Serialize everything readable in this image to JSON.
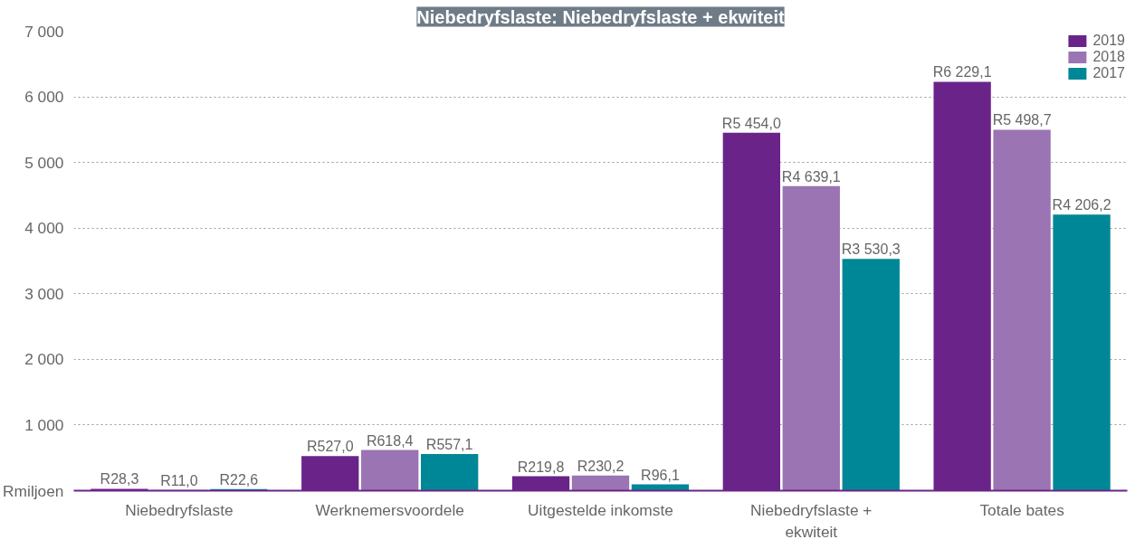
{
  "chart_data": {
    "type": "bar",
    "title": "Niebedryfslaste: Niebedryfslaste + ekwiteit",
    "categories": [
      "Niebedryfslaste",
      "Werknemersvoordele",
      "Uitgestelde inkomste",
      "Niebedryfslaste + ekwiteit",
      "Totale bates"
    ],
    "series": [
      {
        "name": "2019",
        "color": "#6a2489",
        "values": [
          28.3,
          527.0,
          219.8,
          5454.0,
          6229.1
        ],
        "value_labels": [
          "R28,3",
          "R527,0",
          "R219,8",
          "R5 454,0",
          "R6 229,1"
        ]
      },
      {
        "name": "2018",
        "color": "#9b74b3",
        "values": [
          11.0,
          618.4,
          230.2,
          4639.1,
          5498.7
        ],
        "value_labels": [
          "R11,0",
          "R618,4",
          "R230,2",
          "R4 639,1",
          "R5 498,7"
        ]
      },
      {
        "name": "2017",
        "color": "#008797",
        "values": [
          22.6,
          557.1,
          96.1,
          3530.3,
          4206.2
        ],
        "value_labels": [
          "R22,6",
          "R557,1",
          "R96,1",
          "R3 530,3",
          "R4 206,2"
        ]
      }
    ],
    "ylim": [
      0,
      7000
    ],
    "yticks": [
      {
        "value": 0,
        "label": "Rmiljoen"
      },
      {
        "value": 1000,
        "label": "1 000"
      },
      {
        "value": 2000,
        "label": "2 000"
      },
      {
        "value": 3000,
        "label": "3 000"
      },
      {
        "value": 4000,
        "label": "4 000"
      },
      {
        "value": 5000,
        "label": "5 000"
      },
      {
        "value": 6000,
        "label": "6 000"
      },
      {
        "value": 7000,
        "label": "7 000"
      }
    ],
    "grid": "y",
    "legend": "top right"
  }
}
